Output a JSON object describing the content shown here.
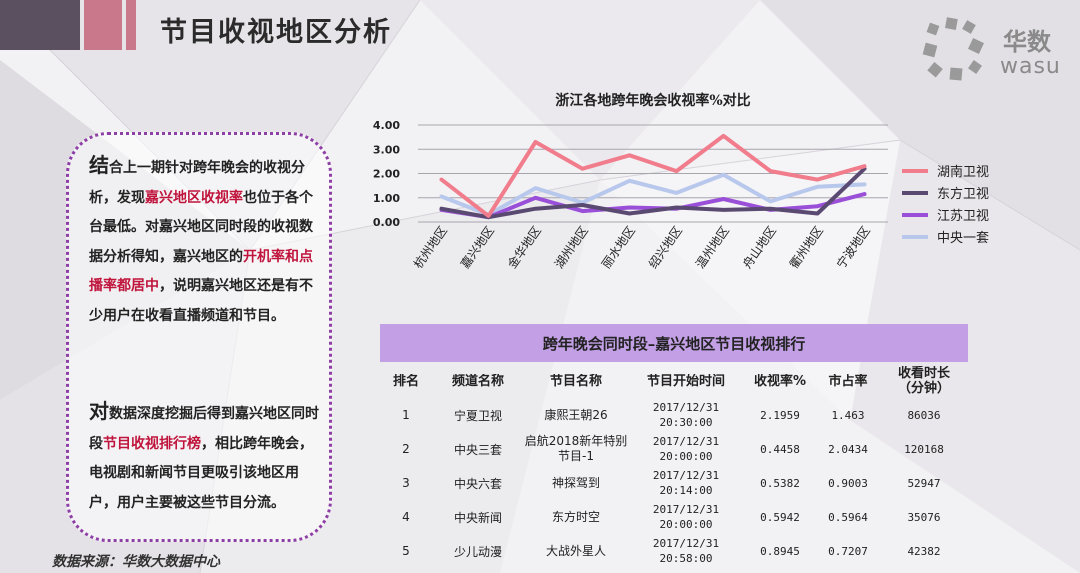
{
  "page": {
    "title": "节目收视地区分析",
    "logo": {
      "name": "华数",
      "en": "wasu"
    },
    "source": "数据来源：华数大数据中心"
  },
  "colors": {
    "accent_dark": "#5b5060",
    "accent_pink": "#c8788a",
    "border_purple": "#8e3fa6",
    "highlight_red": "#c0143c",
    "table_header": "#c3a0e6"
  },
  "analysis": {
    "p1": {
      "lead": "结",
      "t1": "合上一期针对跨年晚会的收视分析，发现",
      "h1": "嘉兴地区收视率",
      "t2": "也位于各个台最低。对嘉兴地区同时段的收视数据分析得知，嘉兴地区的",
      "h2": "开机率和点播率都居中",
      "t3": "，说明嘉兴地区还是有不少用户在收看直播频道和节目。"
    },
    "p2": {
      "lead": "对",
      "t1": "数据深度挖掘后得到嘉兴地区同时段",
      "h1": "节目收视排行榜",
      "t2": "，相比跨年晚会，电视剧和新闻节目更吸引该地区用户，用户主要被这些节目分流。"
    }
  },
  "chart_data": {
    "type": "line",
    "title": "浙江各地跨年晚会收视率%对比",
    "categories": [
      "杭州地区",
      "嘉兴地区",
      "金华地区",
      "湖州地区",
      "丽水地区",
      "绍兴地区",
      "温州地区",
      "舟山地区",
      "衢州地区",
      "宁波地区"
    ],
    "series": [
      {
        "name": "湖南卫视",
        "color": "#f07c8c",
        "values": [
          1.75,
          0.25,
          3.3,
          2.2,
          2.75,
          2.1,
          3.55,
          2.1,
          1.75,
          2.3
        ]
      },
      {
        "name": "东方卫视",
        "color": "#5a4a72",
        "values": [
          0.55,
          0.2,
          0.55,
          0.7,
          0.35,
          0.6,
          0.5,
          0.55,
          0.35,
          2.2
        ]
      },
      {
        "name": "江苏卫视",
        "color": "#9a4fd8",
        "values": [
          0.5,
          0.2,
          1.0,
          0.45,
          0.6,
          0.55,
          0.95,
          0.5,
          0.65,
          1.15
        ]
      },
      {
        "name": "中央一套",
        "color": "#b8c8ec",
        "values": [
          1.05,
          0.3,
          1.4,
          0.8,
          1.7,
          1.2,
          1.95,
          0.85,
          1.45,
          1.55
        ]
      }
    ],
    "yticks": [
      "4.00",
      "3.00",
      "2.00",
      "1.00",
      "0.00"
    ],
    "ylim": [
      0,
      4
    ],
    "grid": true,
    "legend": "right"
  },
  "ranking": {
    "title": "跨年晚会同时段–嘉兴地区节目收视排行",
    "headers": [
      "排名",
      "频道名称",
      "节目名称",
      "节目开始时间",
      "收视率%",
      "市占率",
      "收看时长(分钟)"
    ],
    "header_time_a": "收看时长",
    "header_time_b": "（分钟）",
    "rows": [
      {
        "rank": "1",
        "channel": "宁夏卫视",
        "program": "康熙王朝26",
        "date": "2017/12/31",
        "time": "20:30:00",
        "rating": "2.1959",
        "share": "1.463",
        "minutes": "86036"
      },
      {
        "rank": "2",
        "channel": "中央三套",
        "program": "启航2018新年特别节目-1",
        "program_a": "启航2018新年特别",
        "program_b": "节目-1",
        "date": "2017/12/31",
        "time": "20:00:00",
        "rating": "0.4458",
        "share": "2.0434",
        "minutes": "120168"
      },
      {
        "rank": "3",
        "channel": "中央六套",
        "program": "神探驾到",
        "date": "2017/12/31",
        "time": "20:14:00",
        "rating": "0.5382",
        "share": "0.9003",
        "minutes": "52947"
      },
      {
        "rank": "4",
        "channel": "中央新闻",
        "program": "东方时空",
        "date": "2017/12/31",
        "time": "20:00:00",
        "rating": "0.5942",
        "share": "0.5964",
        "minutes": "35076"
      },
      {
        "rank": "5",
        "channel": "少儿动漫",
        "program": "大战外星人",
        "date": "2017/12/31",
        "time": "20:58:00",
        "rating": "0.8945",
        "share": "0.7207",
        "minutes": "42382"
      }
    ]
  }
}
